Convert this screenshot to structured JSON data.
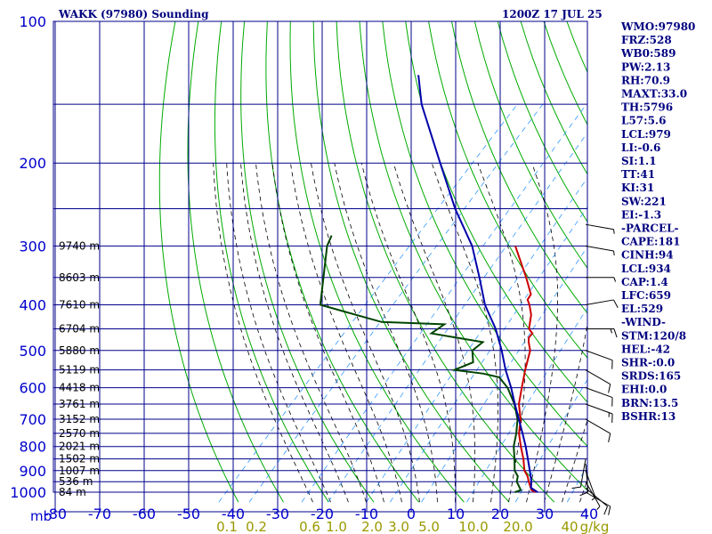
{
  "header": {
    "title": "WAKK (97980) Sounding",
    "time": "1200Z 17 JUL 25"
  },
  "axis": {
    "pressure_unit": "mb"
  },
  "colors": {
    "grid": "#00008b",
    "dry_adiabat": "#00aa00",
    "moist_adiabat": "#000000",
    "mixing_ratio": "#3399ff",
    "temperature": "#cc0000",
    "dewpoint": "#004400",
    "parcel": "#0000aa",
    "wind_barb": "#000000",
    "height_labels": "#000000"
  },
  "indices": [
    "WMO:97980",
    "FRZ:528",
    "WB0:589",
    "PW:2.13",
    "RH:70.9",
    "MAXT:33.0",
    "TH:5796",
    "L57:5.6",
    "LCL:979",
    "LI:-0.6",
    "SI:1.1",
    "TT:41",
    "KI:31",
    "SW:221",
    "EI:-1.3",
    "-PARCEL-",
    "CAPE:181",
    "CINH:94",
    "LCL:934",
    "CAP:1.4",
    "LFC:659",
    "EL:529",
    "-WIND-",
    "STM:120/8",
    "HEL:-42",
    "SHR-:0.0",
    "SRDS:165",
    "EHI:0.0",
    "BRN:13.5",
    "BSHR:13"
  ],
  "chart_data": {
    "type": "line",
    "title": "WAKK (97980) Sounding",
    "subtitle": "1200Z 17 JUL 25",
    "xlabel": "",
    "ylabel": "mb",
    "y_scale": "log",
    "ylim": [
      1000,
      100
    ],
    "xlim": [
      -80,
      40
    ],
    "skew": "skew-T log-P",
    "pressure_levels": [
      100,
      200,
      300,
      400,
      500,
      600,
      700,
      800,
      900,
      1000
    ],
    "temperature_ticks": [
      -80,
      -70,
      -60,
      -50,
      -40,
      -30,
      -20,
      -10,
      0,
      10,
      20,
      30,
      40
    ],
    "temperature_tick_labels": [
      "-80",
      "-70",
      "-60",
      "-50",
      "-40",
      "-30",
      "-20",
      "-10",
      "0",
      "10",
      "20",
      "30",
      "40"
    ],
    "mixing_ratio_labels": [
      "0.1",
      "0.2",
      "0.6",
      "1.0",
      "2.0",
      "3.0",
      "5.0",
      "10.0",
      "20.0",
      "40",
      "g/kg"
    ],
    "height_labels": [
      {
        "pressure": 300,
        "text": "9740 m"
      },
      {
        "pressure": 350,
        "text": "8603 m"
      },
      {
        "pressure": 400,
        "text": "7610 m"
      },
      {
        "pressure": 450,
        "text": "6704 m"
      },
      {
        "pressure": 500,
        "text": "5880 m"
      },
      {
        "pressure": 550,
        "text": "5119 m"
      },
      {
        "pressure": 600,
        "text": "4418 m"
      },
      {
        "pressure": 650,
        "text": "3761 m"
      },
      {
        "pressure": 700,
        "text": "3152 m"
      },
      {
        "pressure": 750,
        "text": "2570 m"
      },
      {
        "pressure": 800,
        "text": "2021 m"
      },
      {
        "pressure": 850,
        "text": "1502 m"
      },
      {
        "pressure": 900,
        "text": "1007 m"
      },
      {
        "pressure": 950,
        "text": "536 m"
      },
      {
        "pressure": 1000,
        "text": "84 m"
      }
    ],
    "series": [
      {
        "name": "Temperature",
        "points": [
          [
            1000,
            28.0
          ],
          [
            990,
            26.6
          ],
          [
            950,
            24.2
          ],
          [
            925,
            22.8
          ],
          [
            900,
            20.9
          ],
          [
            850,
            18.2
          ],
          [
            800,
            15.0
          ],
          [
            750,
            11.8
          ],
          [
            700,
            9.2
          ],
          [
            650,
            5.6
          ],
          [
            600,
            2.8
          ],
          [
            550,
            -0.2
          ],
          [
            500,
            -3.2
          ],
          [
            480,
            -5.3
          ],
          [
            470,
            -6.2
          ],
          [
            460,
            -6.3
          ],
          [
            450,
            -8.0
          ],
          [
            420,
            -10.5
          ],
          [
            400,
            -13.0
          ],
          [
            390,
            -14.5
          ],
          [
            380,
            -14.9
          ],
          [
            350,
            -19.5
          ],
          [
            300,
            -28.6
          ]
        ]
      },
      {
        "name": "Dewpoint",
        "points": [
          [
            1000,
            23.3
          ],
          [
            990,
            24.2
          ],
          [
            950,
            21.5
          ],
          [
            925,
            20.6
          ],
          [
            900,
            18.7
          ],
          [
            850,
            16.2
          ],
          [
            800,
            13.4
          ],
          [
            750,
            11.2
          ],
          [
            700,
            8.5
          ],
          [
            650,
            4.6
          ],
          [
            600,
            -0.4
          ],
          [
            570,
            -4.5
          ],
          [
            560,
            -8.8
          ],
          [
            550,
            -16.1
          ],
          [
            530,
            -13.5
          ],
          [
            500,
            -16.2
          ],
          [
            480,
            -15.6
          ],
          [
            460,
            -29.0
          ],
          [
            440,
            -28.0
          ],
          [
            435,
            -42.6
          ],
          [
            400,
            -60.0
          ],
          [
            300,
            -70.9
          ],
          [
            285,
            -72.1
          ]
        ]
      },
      {
        "name": "Parcel",
        "points": [
          [
            1000,
            28.4
          ],
          [
            979,
            26.0
          ],
          [
            950,
            24.8
          ],
          [
            900,
            22.1
          ],
          [
            850,
            19.2
          ],
          [
            800,
            16.1
          ],
          [
            750,
            12.6
          ],
          [
            700,
            8.8
          ],
          [
            650,
            4.7
          ],
          [
            600,
            0.4
          ],
          [
            550,
            -4.6
          ],
          [
            500,
            -9.6
          ],
          [
            450,
            -15.5
          ],
          [
            400,
            -23.0
          ],
          [
            350,
            -30.0
          ],
          [
            300,
            -38.3
          ],
          [
            250,
            -50.0
          ],
          [
            200,
            -63.0
          ],
          [
            150,
            -79.6
          ],
          [
            130,
            -86.5
          ]
        ]
      }
    ],
    "wind_barbs": [
      {
        "pressure": 1000,
        "dir": 120,
        "spd": 8
      },
      {
        "pressure": 980,
        "dir": 130,
        "spd": 8
      },
      {
        "pressure": 950,
        "dir": 150,
        "spd": 5
      },
      {
        "pressure": 900,
        "dir": 160,
        "spd": 5
      },
      {
        "pressure": 870,
        "dir": 175,
        "spd": 10
      },
      {
        "pressure": 850,
        "dir": 190,
        "spd": 10
      },
      {
        "pressure": 700,
        "dir": 120,
        "spd": 10
      },
      {
        "pressure": 650,
        "dir": 110,
        "spd": 15
      },
      {
        "pressure": 600,
        "dir": 110,
        "spd": 10
      },
      {
        "pressure": 550,
        "dir": 120,
        "spd": 10
      },
      {
        "pressure": 500,
        "dir": 110,
        "spd": 10
      },
      {
        "pressure": 450,
        "dir": 90,
        "spd": 15
      },
      {
        "pressure": 400,
        "dir": 80,
        "spd": 10
      },
      {
        "pressure": 350,
        "dir": 90,
        "spd": 5
      },
      {
        "pressure": 300,
        "dir": 100,
        "spd": 5
      },
      {
        "pressure": 270,
        "dir": 100,
        "spd": 5
      }
    ],
    "grid": true,
    "legend": "none"
  }
}
